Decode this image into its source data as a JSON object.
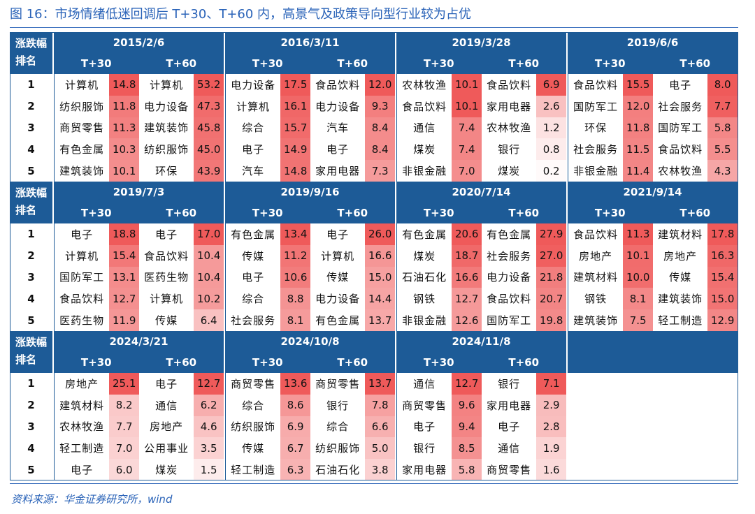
{
  "title": "图 16：市场情绪低迷回调后 T+30、T+60 内，高景气及政策导向型行业较为占优",
  "source": "资料来源：华金证券研究所，wind",
  "labels": {
    "rise_fall": "涨跌幅",
    "rank": "排名",
    "t30": "T+30",
    "t60": "T+60"
  },
  "ranks": [
    "1",
    "2",
    "3",
    "4",
    "5"
  ],
  "chart_data": {
    "type": "table",
    "colors": {
      "header_bg": "#1d5b97",
      "header_text": "#ffffff",
      "heat_high": "#ef5a5a",
      "heat_low": "#ffffff"
    },
    "blocks": [
      {
        "date": "2015/2/6",
        "rows": [
          {
            "t30_ind": "计算机",
            "t30_val": 14.8,
            "t60_ind": "计算机",
            "t60_val": 53.2
          },
          {
            "t30_ind": "纺织服饰",
            "t30_val": 11.8,
            "t60_ind": "电力设备",
            "t60_val": 47.3
          },
          {
            "t30_ind": "商贸零售",
            "t30_val": 11.3,
            "t60_ind": "建筑装饰",
            "t60_val": 45.8
          },
          {
            "t30_ind": "有色金属",
            "t30_val": 10.3,
            "t60_ind": "纺织服饰",
            "t60_val": 45.0
          },
          {
            "t30_ind": "建筑装饰",
            "t30_val": 10.1,
            "t60_ind": "环保",
            "t60_val": 43.9
          }
        ]
      },
      {
        "date": "2016/3/11",
        "rows": [
          {
            "t30_ind": "电力设备",
            "t30_val": 17.5,
            "t60_ind": "食品饮料",
            "t60_val": 12.0
          },
          {
            "t30_ind": "计算机",
            "t30_val": 16.1,
            "t60_ind": "电力设备",
            "t60_val": 9.3
          },
          {
            "t30_ind": "综合",
            "t30_val": 15.7,
            "t60_ind": "汽车",
            "t60_val": 8.4
          },
          {
            "t30_ind": "电子",
            "t30_val": 14.9,
            "t60_ind": "电子",
            "t60_val": 8.4
          },
          {
            "t30_ind": "汽车",
            "t30_val": 14.8,
            "t60_ind": "家用电器",
            "t60_val": 7.3
          }
        ]
      },
      {
        "date": "2019/3/28",
        "rows": [
          {
            "t30_ind": "农林牧渔",
            "t30_val": 10.1,
            "t60_ind": "食品饮料",
            "t60_val": 6.9
          },
          {
            "t30_ind": "食品饮料",
            "t30_val": 10.1,
            "t60_ind": "家用电器",
            "t60_val": 2.6
          },
          {
            "t30_ind": "通信",
            "t30_val": 7.4,
            "t60_ind": "农林牧渔",
            "t60_val": 1.2
          },
          {
            "t30_ind": "煤炭",
            "t30_val": 7.4,
            "t60_ind": "银行",
            "t60_val": 0.8
          },
          {
            "t30_ind": "非银金融",
            "t30_val": 7.0,
            "t60_ind": "煤炭",
            "t60_val": 0.2
          }
        ]
      },
      {
        "date": "2019/6/6",
        "rows": [
          {
            "t30_ind": "食品饮料",
            "t30_val": 15.5,
            "t60_ind": "电子",
            "t60_val": 8.0
          },
          {
            "t30_ind": "国防军工",
            "t30_val": 12.0,
            "t60_ind": "社会服务",
            "t60_val": 7.7
          },
          {
            "t30_ind": "环保",
            "t30_val": 11.8,
            "t60_ind": "国防军工",
            "t60_val": 5.8
          },
          {
            "t30_ind": "社会服务",
            "t30_val": 11.5,
            "t60_ind": "食品饮料",
            "t60_val": 5.5
          },
          {
            "t30_ind": "非银金融",
            "t30_val": 11.4,
            "t60_ind": "农林牧渔",
            "t60_val": 4.3
          }
        ]
      },
      {
        "date": "2019/7/3",
        "rows": [
          {
            "t30_ind": "电子",
            "t30_val": 18.8,
            "t60_ind": "电子",
            "t60_val": 17.0
          },
          {
            "t30_ind": "计算机",
            "t30_val": 15.4,
            "t60_ind": "食品饮料",
            "t60_val": 10.4
          },
          {
            "t30_ind": "国防军工",
            "t30_val": 13.1,
            "t60_ind": "医药生物",
            "t60_val": 10.4
          },
          {
            "t30_ind": "食品饮料",
            "t30_val": 12.7,
            "t60_ind": "计算机",
            "t60_val": 10.2
          },
          {
            "t30_ind": "医药生物",
            "t30_val": 11.9,
            "t60_ind": "传媒",
            "t60_val": 6.4
          }
        ]
      },
      {
        "date": "2019/9/16",
        "rows": [
          {
            "t30_ind": "有色金属",
            "t30_val": 13.4,
            "t60_ind": "电子",
            "t60_val": 26.0
          },
          {
            "t30_ind": "传媒",
            "t30_val": 11.2,
            "t60_ind": "计算机",
            "t60_val": 16.6
          },
          {
            "t30_ind": "电子",
            "t30_val": 10.6,
            "t60_ind": "传媒",
            "t60_val": 15.0
          },
          {
            "t30_ind": "综合",
            "t30_val": 8.8,
            "t60_ind": "电力设备",
            "t60_val": 14.4
          },
          {
            "t30_ind": "社会服务",
            "t30_val": 8.1,
            "t60_ind": "有色金属",
            "t60_val": 13.7
          }
        ]
      },
      {
        "date": "2020/7/14",
        "rows": [
          {
            "t30_ind": "有色金属",
            "t30_val": 20.6,
            "t60_ind": "有色金属",
            "t60_val": 27.9
          },
          {
            "t30_ind": "煤炭",
            "t30_val": 18.7,
            "t60_ind": "社会服务",
            "t60_val": 27.0
          },
          {
            "t30_ind": "石油石化",
            "t30_val": 16.6,
            "t60_ind": "电力设备",
            "t60_val": 21.8
          },
          {
            "t30_ind": "钢铁",
            "t30_val": 12.7,
            "t60_ind": "食品饮料",
            "t60_val": 20.7
          },
          {
            "t30_ind": "非银金融",
            "t30_val": 12.6,
            "t60_ind": "国防军工",
            "t60_val": 19.8
          }
        ]
      },
      {
        "date": "2021/9/14",
        "rows": [
          {
            "t30_ind": "食品饮料",
            "t30_val": 11.3,
            "t60_ind": "建筑材料",
            "t60_val": 17.8
          },
          {
            "t30_ind": "房地产",
            "t30_val": 10.1,
            "t60_ind": "房地产",
            "t60_val": 16.3
          },
          {
            "t30_ind": "建筑材料",
            "t30_val": 10.0,
            "t60_ind": "传媒",
            "t60_val": 15.4
          },
          {
            "t30_ind": "钢铁",
            "t30_val": 8.1,
            "t60_ind": "建筑装饰",
            "t60_val": 15.0
          },
          {
            "t30_ind": "建筑装饰",
            "t30_val": 7.5,
            "t60_ind": "轻工制造",
            "t60_val": 12.9
          }
        ]
      },
      {
        "date": "2024/3/21",
        "rows": [
          {
            "t30_ind": "房地产",
            "t30_val": 25.1,
            "t60_ind": "电子",
            "t60_val": 12.7
          },
          {
            "t30_ind": "建筑材料",
            "t30_val": 8.2,
            "t60_ind": "通信",
            "t60_val": 6.2
          },
          {
            "t30_ind": "农林牧渔",
            "t30_val": 7.7,
            "t60_ind": "房地产",
            "t60_val": 4.6
          },
          {
            "t30_ind": "轻工制造",
            "t30_val": 7.0,
            "t60_ind": "公用事业",
            "t60_val": 3.5
          },
          {
            "t30_ind": "电子",
            "t30_val": 6.0,
            "t60_ind": "煤炭",
            "t60_val": 1.5
          }
        ]
      },
      {
        "date": "2024/10/8",
        "rows": [
          {
            "t30_ind": "商贸零售",
            "t30_val": 13.6,
            "t60_ind": "商贸零售",
            "t60_val": 13.7
          },
          {
            "t30_ind": "综合",
            "t30_val": 8.6,
            "t60_ind": "银行",
            "t60_val": 7.8
          },
          {
            "t30_ind": "纺织服饰",
            "t30_val": 6.9,
            "t60_ind": "综合",
            "t60_val": 6.6
          },
          {
            "t30_ind": "传媒",
            "t30_val": 6.7,
            "t60_ind": "纺织服饰",
            "t60_val": 5.0
          },
          {
            "t30_ind": "轻工制造",
            "t30_val": 6.3,
            "t60_ind": "石油石化",
            "t60_val": 3.8
          }
        ]
      },
      {
        "date": "2024/11/8",
        "rows": [
          {
            "t30_ind": "通信",
            "t30_val": 12.7,
            "t60_ind": "银行",
            "t60_val": 7.1
          },
          {
            "t30_ind": "商贸零售",
            "t30_val": 9.6,
            "t60_ind": "家用电器",
            "t60_val": 2.9
          },
          {
            "t30_ind": "电子",
            "t30_val": 9.4,
            "t60_ind": "电子",
            "t60_val": 2.8
          },
          {
            "t30_ind": "银行",
            "t30_val": 8.5,
            "t60_ind": "通信",
            "t60_val": 1.9
          },
          {
            "t30_ind": "家用电器",
            "t30_val": 5.8,
            "t60_ind": "商贸零售",
            "t60_val": 1.6
          }
        ]
      }
    ]
  }
}
